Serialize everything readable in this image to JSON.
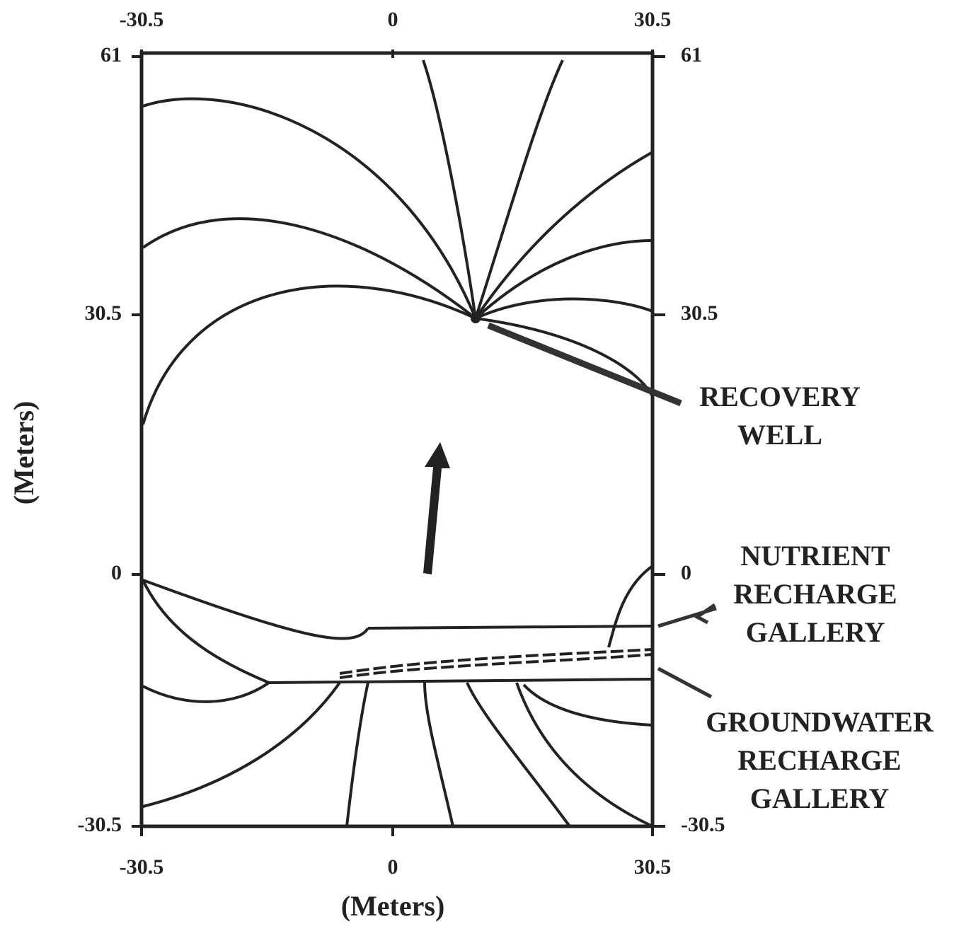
{
  "axes": {
    "top_ticks": [
      "-30.5",
      "0",
      "30.5"
    ],
    "bottom_ticks": [
      "-30.5",
      "0",
      "30.5"
    ],
    "left_ticks": [
      "61",
      "30.5",
      "0",
      "-30.5"
    ],
    "right_ticks": [
      "61",
      "30.5",
      "0",
      "-30.5"
    ],
    "x_label": "(Meters)",
    "y_label": "(Meters)"
  },
  "annotations": {
    "recovery_well": [
      "RECOVERY",
      "WELL"
    ],
    "nutrient_gallery": [
      "NUTRIENT",
      "RECHARGE",
      "GALLERY"
    ],
    "groundwater_gallery": [
      "GROUNDWATER",
      "RECHARGE",
      "GALLERY"
    ]
  }
}
